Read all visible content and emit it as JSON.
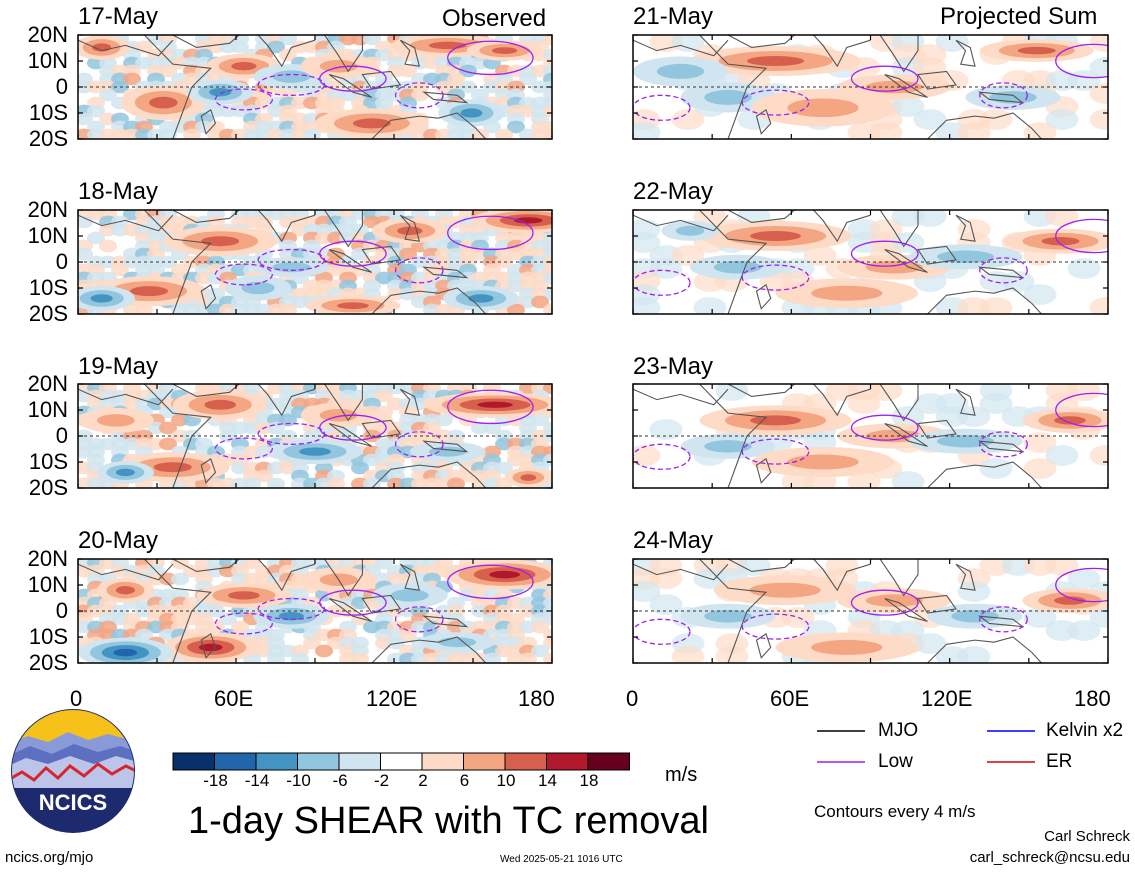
{
  "columns": {
    "left_title": "Observed",
    "right_title": "Projected Sum"
  },
  "panels": {
    "left": [
      "17-May",
      "18-May",
      "19-May",
      "20-May"
    ],
    "right": [
      "21-May",
      "22-May",
      "23-May",
      "24-May"
    ]
  },
  "y_labels": [
    "20N",
    "10N",
    "0",
    "10S",
    "20S"
  ],
  "x_labels": [
    "0",
    "60E",
    "120E",
    "180"
  ],
  "colorbar": {
    "ticks": [
      "-18",
      "-14",
      "-10",
      "-6",
      "-2",
      "2",
      "6",
      "10",
      "14",
      "18"
    ],
    "colors": [
      "#08306b",
      "#2166ac",
      "#4393c3",
      "#92c5de",
      "#d1e5f0",
      "#ffffff",
      "#fddbc7",
      "#f4a582",
      "#d6604d",
      "#b2182b",
      "#67001f"
    ],
    "units": "m/s"
  },
  "title": "1-day SHEAR with TC removal",
  "legend": {
    "items": [
      {
        "label": "MJO",
        "color": "#000000",
        "style": "solid"
      },
      {
        "label": "Kelvin x2",
        "color": "#0000ff",
        "style": "solid"
      },
      {
        "label": "Low",
        "color": "#a020f0",
        "style": "solid"
      },
      {
        "label": "ER",
        "color": "#e00000",
        "style": "solid"
      }
    ],
    "note": "Contours every 4 m/s"
  },
  "logo_text": "NCICS",
  "footer": {
    "url": "ncics.org/mjo",
    "timestamp": "Wed 2025-05-21 1016 UTC",
    "author": "Carl Schreck",
    "email": "carl_schreck@ncsu.edu"
  },
  "chart_data": {
    "type": "heatmap",
    "variable": "1-day SHEAR with TC removal",
    "units": "m/s",
    "x_range": [
      "0",
      "180"
    ],
    "y_range": [
      "20S",
      "20N"
    ],
    "contour_interval": 4,
    "color_levels": [
      -18,
      -14,
      -10,
      -6,
      -2,
      2,
      6,
      10,
      14,
      18
    ],
    "panels_observed": [
      "17-May",
      "18-May",
      "19-May",
      "20-May"
    ],
    "panels_projected": [
      "21-May",
      "22-May",
      "23-May",
      "24-May"
    ]
  }
}
